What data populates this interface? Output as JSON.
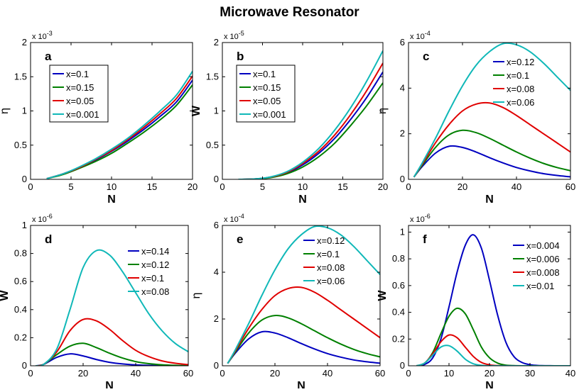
{
  "title": "Microwave Resonator",
  "colors": {
    "blue": "#0000c0",
    "green": "#008000",
    "red": "#e00000",
    "cyan": "#10b8b8"
  },
  "chart_data": [
    {
      "panel": "a",
      "type": "line",
      "xlabel": "N",
      "ylabel": "η",
      "exponent_label": "x 10^-3",
      "xlim": [
        0,
        20
      ],
      "ylim": [
        0,
        2
      ],
      "xticks": [
        "0",
        "5",
        "10",
        "15",
        "20"
      ],
      "yticks": [
        "0",
        "0.5",
        "1",
        "1.5",
        "2"
      ],
      "legend": [
        "x=0.1",
        "x=0.15",
        "x=0.05",
        "x=0.001"
      ],
      "x": [
        2,
        4,
        6,
        8,
        10,
        12,
        14,
        16,
        18,
        20
      ],
      "series": [
        {
          "name": "x=0.1",
          "color": "blue",
          "values": [
            0.01,
            0.08,
            0.17,
            0.28,
            0.41,
            0.56,
            0.73,
            0.92,
            1.13,
            1.45
          ]
        },
        {
          "name": "x=0.15",
          "color": "green",
          "values": [
            0.01,
            0.07,
            0.16,
            0.26,
            0.38,
            0.53,
            0.69,
            0.87,
            1.08,
            1.38
          ]
        },
        {
          "name": "x=0.05",
          "color": "red",
          "values": [
            0.01,
            0.08,
            0.17,
            0.29,
            0.42,
            0.58,
            0.76,
            0.96,
            1.18,
            1.51
          ]
        },
        {
          "name": "x=0.001",
          "color": "cyan",
          "values": [
            0.01,
            0.08,
            0.18,
            0.3,
            0.44,
            0.6,
            0.79,
            1.0,
            1.23,
            1.58
          ]
        }
      ]
    },
    {
      "panel": "b",
      "type": "line",
      "xlabel": "N",
      "ylabel": "W",
      "exponent_label": "x 10^-5",
      "xlim": [
        0,
        20
      ],
      "ylim": [
        0,
        2
      ],
      "xticks": [
        "0",
        "5",
        "10",
        "15",
        "20"
      ],
      "yticks": [
        "0",
        "0.5",
        "1",
        "1.5",
        "2"
      ],
      "legend": [
        "x=0.1",
        "x=0.15",
        "x=0.05",
        "x=0.001"
      ],
      "x": [
        2,
        4,
        6,
        8,
        10,
        12,
        14,
        16,
        18,
        20
      ],
      "series": [
        {
          "name": "x=0.1",
          "color": "blue",
          "values": [
            0.0,
            0.005,
            0.03,
            0.09,
            0.21,
            0.38,
            0.6,
            0.88,
            1.2,
            1.57
          ]
        },
        {
          "name": "x=0.15",
          "color": "green",
          "values": [
            0.0,
            0.004,
            0.025,
            0.08,
            0.18,
            0.33,
            0.53,
            0.79,
            1.08,
            1.41
          ]
        },
        {
          "name": "x=0.05",
          "color": "red",
          "values": [
            0.0,
            0.005,
            0.032,
            0.1,
            0.23,
            0.41,
            0.65,
            0.95,
            1.3,
            1.7
          ]
        },
        {
          "name": "x=0.001",
          "color": "cyan",
          "values": [
            0.0,
            0.006,
            0.035,
            0.11,
            0.25,
            0.45,
            0.72,
            1.05,
            1.44,
            1.88
          ]
        }
      ]
    },
    {
      "panel": "c",
      "type": "line",
      "xlabel": "N",
      "ylabel": "η",
      "exponent_label": "x 10^-4",
      "xlim": [
        0,
        60
      ],
      "ylim": [
        0,
        6
      ],
      "xticks": [
        "0",
        "20",
        "40",
        "60"
      ],
      "yticks": [
        "0",
        "2",
        "4",
        "6"
      ],
      "legend": [
        "x=0.12",
        "x=0.1",
        "x=0.08",
        "x=0.06"
      ],
      "x": [
        2,
        5,
        10,
        15,
        20,
        25,
        30,
        35,
        40,
        45,
        50,
        55,
        60
      ],
      "series": [
        {
          "name": "x=0.12",
          "color": "blue",
          "values": [
            0.1,
            0.55,
            1.15,
            1.45,
            1.4,
            1.2,
            0.95,
            0.72,
            0.52,
            0.37,
            0.25,
            0.17,
            0.11
          ]
        },
        {
          "name": "x=0.1",
          "color": "green",
          "values": [
            0.1,
            0.6,
            1.4,
            1.95,
            2.15,
            2.05,
            1.8,
            1.5,
            1.2,
            0.93,
            0.7,
            0.52,
            0.38
          ]
        },
        {
          "name": "x=0.08",
          "color": "red",
          "values": [
            0.1,
            0.65,
            1.6,
            2.4,
            3.0,
            3.3,
            3.35,
            3.15,
            2.8,
            2.4,
            2.0,
            1.6,
            1.2
          ]
        },
        {
          "name": "x=0.06",
          "color": "cyan",
          "values": [
            0.1,
            0.7,
            1.8,
            3.0,
            4.1,
            5.0,
            5.6,
            5.95,
            5.9,
            5.6,
            5.1,
            4.5,
            3.9
          ]
        }
      ]
    },
    {
      "panel": "d",
      "type": "line",
      "xlabel": "N",
      "ylabel": "W",
      "exponent_label": "x 10^-6",
      "xlim": [
        0,
        60
      ],
      "ylim": [
        0,
        1
      ],
      "xticks": [
        "0",
        "20",
        "40",
        "60"
      ],
      "yticks": [
        "0",
        "0.2",
        "0.4",
        "0.6",
        "0.8",
        "1"
      ],
      "legend": [
        "x=0.14",
        "x=0.12",
        "x=0.1",
        "x=0.08"
      ],
      "x": [
        2,
        5,
        10,
        15,
        20,
        25,
        30,
        35,
        40,
        45,
        50,
        55,
        60
      ],
      "series": [
        {
          "name": "x=0.14",
          "color": "blue",
          "values": [
            0.0,
            0.01,
            0.06,
            0.085,
            0.07,
            0.045,
            0.025,
            0.013,
            0.006,
            0.003,
            0.001,
            0.0,
            0.0
          ]
        },
        {
          "name": "x=0.12",
          "color": "green",
          "values": [
            0.0,
            0.01,
            0.08,
            0.14,
            0.16,
            0.13,
            0.09,
            0.055,
            0.03,
            0.015,
            0.007,
            0.003,
            0.001
          ]
        },
        {
          "name": "x=0.1",
          "color": "red",
          "values": [
            0.0,
            0.01,
            0.1,
            0.25,
            0.33,
            0.32,
            0.26,
            0.18,
            0.11,
            0.065,
            0.035,
            0.018,
            0.008
          ]
        },
        {
          "name": "x=0.08",
          "color": "cyan",
          "values": [
            0.0,
            0.01,
            0.12,
            0.4,
            0.7,
            0.82,
            0.79,
            0.67,
            0.52,
            0.37,
            0.25,
            0.16,
            0.1
          ]
        }
      ]
    },
    {
      "panel": "e",
      "type": "line",
      "xlabel": "N",
      "ylabel": "η",
      "exponent_label": "x 10^-4",
      "xlim": [
        0,
        60
      ],
      "ylim": [
        0,
        6
      ],
      "xticks": [
        "0",
        "20",
        "40",
        "60"
      ],
      "yticks": [
        "0",
        "2",
        "4",
        "6"
      ],
      "legend": [
        "x=0.12",
        "x=0.1",
        "x=0.08",
        "x=0.06"
      ],
      "x": [
        2,
        5,
        10,
        15,
        20,
        25,
        30,
        35,
        40,
        45,
        50,
        55,
        60
      ],
      "series": [
        {
          "name": "x=0.12",
          "color": "blue",
          "values": [
            0.1,
            0.55,
            1.15,
            1.45,
            1.4,
            1.2,
            0.95,
            0.72,
            0.52,
            0.37,
            0.25,
            0.17,
            0.11
          ]
        },
        {
          "name": "x=0.1",
          "color": "green",
          "values": [
            0.1,
            0.6,
            1.4,
            1.95,
            2.15,
            2.05,
            1.8,
            1.5,
            1.2,
            0.93,
            0.7,
            0.52,
            0.38
          ]
        },
        {
          "name": "x=0.08",
          "color": "red",
          "values": [
            0.1,
            0.65,
            1.6,
            2.4,
            3.0,
            3.3,
            3.35,
            3.15,
            2.8,
            2.4,
            2.0,
            1.6,
            1.2
          ]
        },
        {
          "name": "x=0.06",
          "color": "cyan",
          "values": [
            0.1,
            0.7,
            1.8,
            3.0,
            4.1,
            5.0,
            5.6,
            5.95,
            5.9,
            5.6,
            5.1,
            4.5,
            3.9
          ]
        }
      ]
    },
    {
      "panel": "f",
      "type": "line",
      "xlabel": "N",
      "ylabel": "W",
      "exponent_label": "x 10^-6",
      "xlim": [
        0,
        40
      ],
      "ylim": [
        0,
        1.05
      ],
      "xticks": [
        "0",
        "10",
        "20",
        "30",
        "40"
      ],
      "yticks": [
        "0",
        "0.2",
        "0.4",
        "0.6",
        "0.8",
        "1"
      ],
      "legend": [
        "x=0.004",
        "x=0.006",
        "x=0.008",
        "x=0.01"
      ],
      "x": [
        2,
        4,
        6,
        8,
        10,
        12,
        14,
        16,
        18,
        20,
        22,
        24,
        26,
        28,
        30,
        32,
        36,
        40
      ],
      "series": [
        {
          "name": "x=0.004",
          "color": "blue",
          "values": [
            0.0,
            0.01,
            0.06,
            0.2,
            0.44,
            0.7,
            0.9,
            0.98,
            0.88,
            0.64,
            0.38,
            0.18,
            0.07,
            0.025,
            0.008,
            0.002,
            0.0,
            0.0
          ]
        },
        {
          "name": "x=0.006",
          "color": "green",
          "values": [
            0.0,
            0.02,
            0.1,
            0.24,
            0.37,
            0.43,
            0.39,
            0.27,
            0.14,
            0.06,
            0.02,
            0.005,
            0.001,
            0.0,
            0.0,
            0.0,
            0.0,
            0.0
          ]
        },
        {
          "name": "x=0.008",
          "color": "red",
          "values": [
            0.0,
            0.02,
            0.09,
            0.18,
            0.23,
            0.21,
            0.14,
            0.07,
            0.025,
            0.007,
            0.001,
            0.0,
            0.0,
            0.0,
            0.0,
            0.0,
            0.0,
            0.0
          ]
        },
        {
          "name": "x=0.01",
          "color": "cyan",
          "values": [
            0.0,
            0.02,
            0.08,
            0.14,
            0.15,
            0.11,
            0.05,
            0.015,
            0.003,
            0.0,
            0.0,
            0.0,
            0.0,
            0.0,
            0.0,
            0.0,
            0.0,
            0.0
          ]
        }
      ]
    }
  ]
}
